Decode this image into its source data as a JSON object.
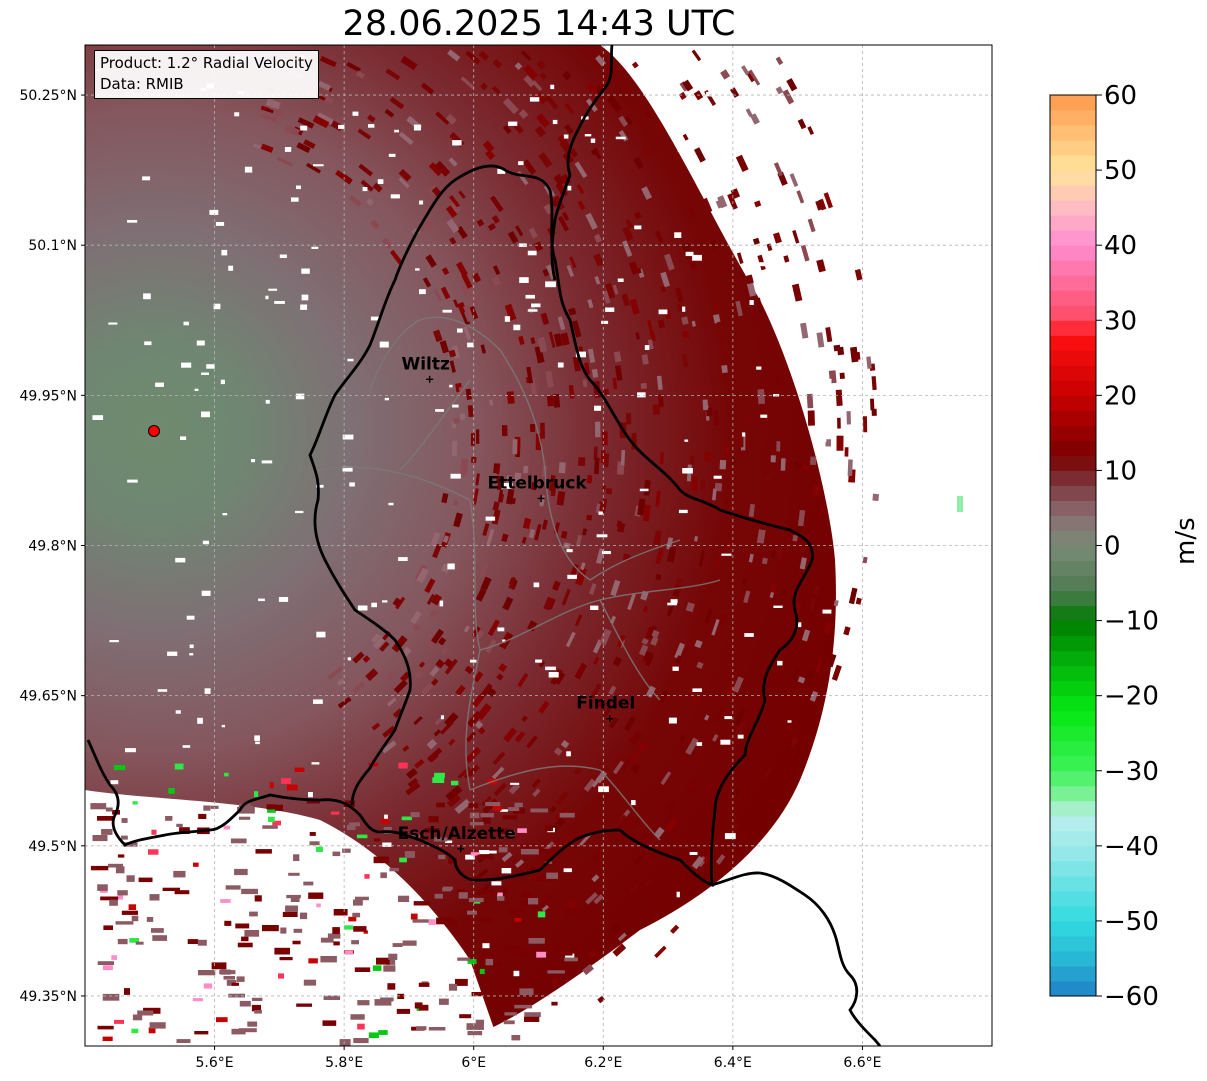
{
  "title": "28.06.2025 14:43 UTC",
  "info": {
    "product": "Product: 1.2° Radial Velocity",
    "source": "Data: RMIB"
  },
  "map": {
    "lon_range": [
      5.4,
      6.8
    ],
    "lat_range": [
      49.3,
      50.3
    ],
    "lat_ticks": [
      {
        "value": 50.25,
        "label": "50.25°N"
      },
      {
        "value": 50.1,
        "label": "50.1°N"
      },
      {
        "value": 49.95,
        "label": "49.95°N"
      },
      {
        "value": 49.8,
        "label": "49.8°N"
      },
      {
        "value": 49.65,
        "label": "49.65°N"
      },
      {
        "value": 49.5,
        "label": "49.5°N"
      },
      {
        "value": 49.35,
        "label": "49.35°N"
      }
    ],
    "lon_ticks": [
      {
        "value": 5.6,
        "label": "5.6°E"
      },
      {
        "value": 5.8,
        "label": "5.8°E"
      },
      {
        "value": 6.0,
        "label": "6°E"
      },
      {
        "value": 6.2,
        "label": "6.2°E"
      },
      {
        "value": 6.4,
        "label": "6.4°E"
      },
      {
        "value": 6.6,
        "label": "6.6°E"
      }
    ],
    "gridlines": true,
    "radar_site": {
      "lon": 5.505,
      "lat": 49.915
    },
    "cities": [
      {
        "name": "Wiltz",
        "lon": 5.932,
        "lat": 49.966
      },
      {
        "name": "Ettelbruck",
        "lon": 6.104,
        "lat": 49.847
      },
      {
        "name": "Findel",
        "lon": 6.21,
        "lat": 49.627
      },
      {
        "name": "Esch/Alzette",
        "lon": 5.98,
        "lat": 49.497
      }
    ]
  },
  "colorbar": {
    "label": "m/s",
    "min": -60,
    "max": 60,
    "ticks": [
      {
        "value": 60,
        "label": "60"
      },
      {
        "value": 50,
        "label": "50"
      },
      {
        "value": 40,
        "label": "40"
      },
      {
        "value": 30,
        "label": "30"
      },
      {
        "value": 20,
        "label": "20"
      },
      {
        "value": 10,
        "label": "10"
      },
      {
        "value": 0,
        "label": "0"
      },
      {
        "value": -10,
        "label": "−10"
      },
      {
        "value": -20,
        "label": "−20"
      },
      {
        "value": -30,
        "label": "−30"
      },
      {
        "value": -40,
        "label": "−40"
      },
      {
        "value": -50,
        "label": "−50"
      },
      {
        "value": -60,
        "label": "−60"
      }
    ],
    "color_stops": [
      {
        "value": -60,
        "color": "#1f7fc6"
      },
      {
        "value": -55,
        "color": "#29b7d6"
      },
      {
        "value": -50,
        "color": "#31dbe0"
      },
      {
        "value": -40,
        "color": "#9fe9ea"
      },
      {
        "value": -36,
        "color": "#b9f0ee"
      },
      {
        "value": -34,
        "color": "#8ef0a8"
      },
      {
        "value": -30,
        "color": "#3ef25a"
      },
      {
        "value": -22,
        "color": "#05e812"
      },
      {
        "value": -16,
        "color": "#02b50c"
      },
      {
        "value": -10,
        "color": "#007c00"
      },
      {
        "value": -6,
        "color": "#4e7a52"
      },
      {
        "value": 0,
        "color": "#7a8b76"
      },
      {
        "value": 4,
        "color": "#8a6e72"
      },
      {
        "value": 8,
        "color": "#7d3a40"
      },
      {
        "value": 12,
        "color": "#7a0000"
      },
      {
        "value": 20,
        "color": "#c70000"
      },
      {
        "value": 28,
        "color": "#ff1010"
      },
      {
        "value": 30,
        "color": "#ff4a63"
      },
      {
        "value": 40,
        "color": "#ff8dd0"
      },
      {
        "value": 45,
        "color": "#ffbcc3"
      },
      {
        "value": 50,
        "color": "#ffe49c"
      },
      {
        "value": 60,
        "color": "#ff9a4c"
      }
    ]
  },
  "colors": {
    "border": "#000000",
    "canton_border": "#7a7a7a",
    "grid": "#b5b5b5",
    "radar_site": "#ff0000",
    "outbound_dark": "#780000",
    "velocity_field_main": "#8a5a60",
    "velocity_field_near": "#6f8a6e"
  }
}
